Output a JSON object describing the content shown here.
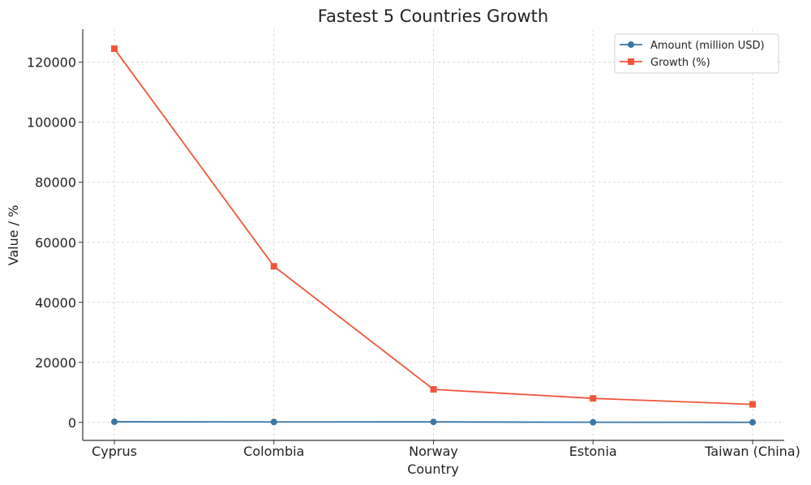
{
  "chart_data": {
    "type": "line",
    "title": "Fastest 5 Countries Growth",
    "xlabel": "Country",
    "ylabel": "Value / %",
    "categories": [
      "Cyprus",
      "Colombia",
      "Norway",
      "Estonia",
      "Taiwan (China)"
    ],
    "ylim": [
      -6000,
      131000
    ],
    "yticks": [
      0,
      20000,
      40000,
      60000,
      80000,
      100000,
      120000
    ],
    "grid": true,
    "legend_position": "top-right",
    "series": [
      {
        "name": "Amount (million USD)",
        "color": "#3a76a5",
        "marker": "circle",
        "values": [
          200,
          150,
          160,
          40,
          20
        ]
      },
      {
        "name": "Growth (%)",
        "color": "#f0553a",
        "marker": "square",
        "values": [
          124500,
          52000,
          11000,
          8000,
          6000
        ]
      }
    ]
  }
}
